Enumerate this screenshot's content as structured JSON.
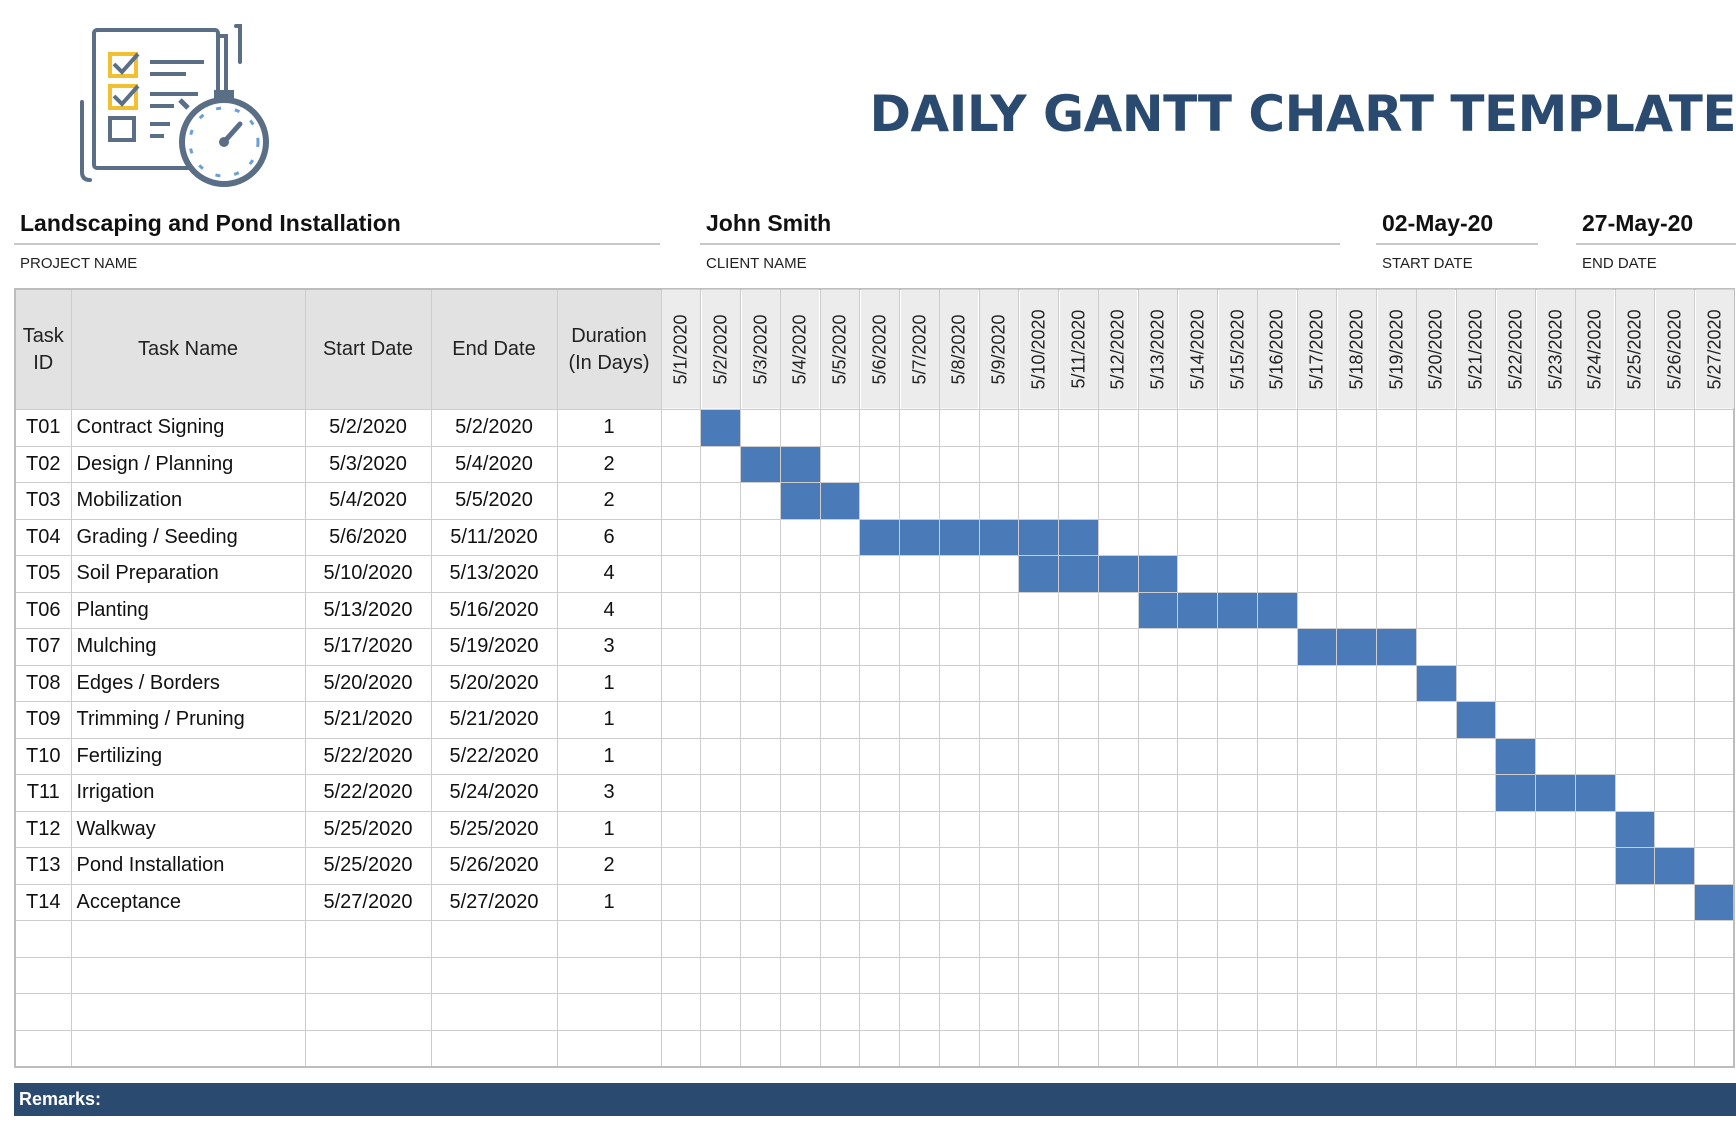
{
  "title": "DAILY GANTT CHART TEMPLATE",
  "logo_icon": "checklist-stopwatch-icon",
  "colors": {
    "title": "#2b4a6f",
    "bar": "#4a7ab8",
    "remarks_bg": "#2b4a6f"
  },
  "project": {
    "name": "Landscaping and Pond Installation",
    "name_label": "PROJECT NAME",
    "client": "John Smith",
    "client_label": "CLIENT NAME",
    "start": "02-May-20",
    "start_label": "START DATE",
    "end": "27-May-20",
    "end_label": "END DATE"
  },
  "table": {
    "headers": {
      "id": "Task ID",
      "name": "Task Name",
      "start": "Start Date",
      "end": "End Date",
      "duration": "Duration (In Days)"
    },
    "days": [
      "5/1/2020",
      "5/2/2020",
      "5/3/2020",
      "5/4/2020",
      "5/5/2020",
      "5/6/2020",
      "5/7/2020",
      "5/8/2020",
      "5/9/2020",
      "5/10/2020",
      "5/11/2020",
      "5/12/2020",
      "5/13/2020",
      "5/14/2020",
      "5/15/2020",
      "5/16/2020",
      "5/17/2020",
      "5/18/2020",
      "5/19/2020",
      "5/20/2020",
      "5/21/2020",
      "5/22/2020",
      "5/23/2020",
      "5/24/2020",
      "5/25/2020",
      "5/26/2020",
      "5/27/2020"
    ],
    "tasks": [
      {
        "id": "T01",
        "name": "Contract Signing",
        "start": "5/2/2020",
        "end": "5/2/2020",
        "duration": "1"
      },
      {
        "id": "T02",
        "name": "Design / Planning",
        "start": "5/3/2020",
        "end": "5/4/2020",
        "duration": "2"
      },
      {
        "id": "T03",
        "name": "Mobilization",
        "start": "5/4/2020",
        "end": "5/5/2020",
        "duration": "2"
      },
      {
        "id": "T04",
        "name": "Grading / Seeding",
        "start": "5/6/2020",
        "end": "5/11/2020",
        "duration": "6"
      },
      {
        "id": "T05",
        "name": "Soil Preparation",
        "start": "5/10/2020",
        "end": "5/13/2020",
        "duration": "4"
      },
      {
        "id": "T06",
        "name": "Planting",
        "start": "5/13/2020",
        "end": "5/16/2020",
        "duration": "4"
      },
      {
        "id": "T07",
        "name": "Mulching",
        "start": "5/17/2020",
        "end": "5/19/2020",
        "duration": "3"
      },
      {
        "id": "T08",
        "name": "Edges / Borders",
        "start": "5/20/2020",
        "end": "5/20/2020",
        "duration": "1"
      },
      {
        "id": "T09",
        "name": "Trimming / Pruning",
        "start": "5/21/2020",
        "end": "5/21/2020",
        "duration": "1"
      },
      {
        "id": "T10",
        "name": "Fertilizing",
        "start": "5/22/2020",
        "end": "5/22/2020",
        "duration": "1"
      },
      {
        "id": "T11",
        "name": "Irrigation",
        "start": "5/22/2020",
        "end": "5/24/2020",
        "duration": "3"
      },
      {
        "id": "T12",
        "name": "Walkway",
        "start": "5/25/2020",
        "end": "5/25/2020",
        "duration": "1"
      },
      {
        "id": "T13",
        "name": "Pond Installation",
        "start": "5/25/2020",
        "end": "5/26/2020",
        "duration": "2"
      },
      {
        "id": "T14",
        "name": "Acceptance",
        "start": "5/27/2020",
        "end": "5/27/2020",
        "duration": "1"
      }
    ],
    "empty_rows": 4
  },
  "remarks_label": "Remarks:"
}
